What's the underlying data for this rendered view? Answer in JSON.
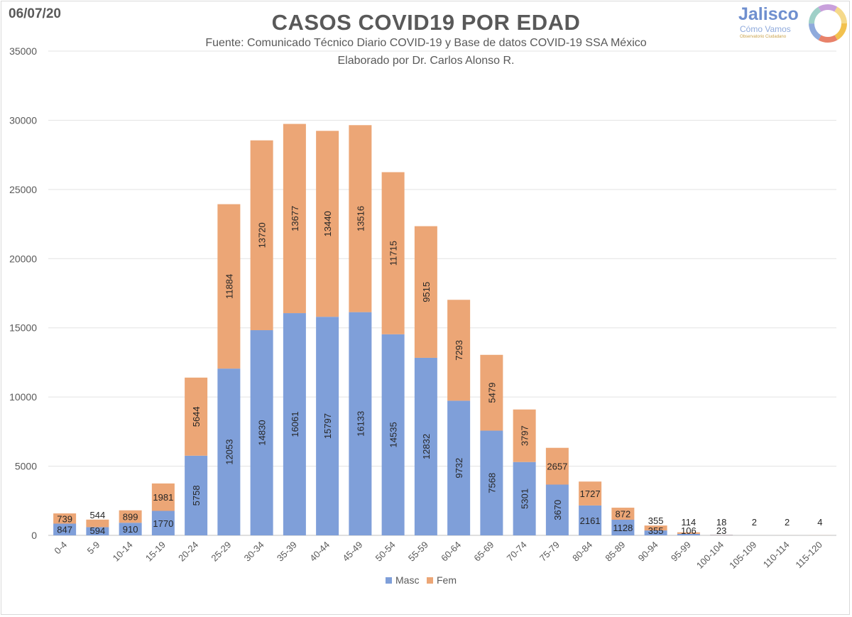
{
  "header": {
    "date": "06/07/20",
    "title": "CASOS COVID19 POR EDAD",
    "subtitle_line1": "Fuente: Comunicado Técnico Diario COVID-19 y Base de datos COVID-19 SSA México",
    "subtitle_line2": "Elaborado por Dr. Carlos Alonso R."
  },
  "logo": {
    "name": "Jalisco",
    "tagline": "Cómo Vamos",
    "small": "Observatorio Ciudadano"
  },
  "chart_data": {
    "type": "bar",
    "stacked": true,
    "title": "CASOS COVID19 POR EDAD",
    "xlabel": "",
    "ylabel": "",
    "ylim": [
      0,
      35000
    ],
    "yticks": [
      0,
      5000,
      10000,
      15000,
      20000,
      25000,
      30000,
      35000
    ],
    "grid": true,
    "legend_position": "bottom",
    "categories": [
      "0-4",
      "5-9",
      "10-14",
      "15-19",
      "20-24",
      "25-29",
      "30-34",
      "35-39",
      "40-44",
      "45-49",
      "50-54",
      "55-59",
      "60-64",
      "65-69",
      "70-74",
      "75-79",
      "80-84",
      "85-89",
      "90-94",
      "95-99",
      "100-104",
      "105-109",
      "110-114",
      "115-120"
    ],
    "series": [
      {
        "name": "Masc",
        "color": "#7f9fd9",
        "values": [
          847,
          594,
          910,
          1770,
          5758,
          12053,
          14830,
          16061,
          15797,
          16133,
          14535,
          12832,
          9732,
          7568,
          5301,
          3670,
          2161,
          1128,
          355,
          106,
          23,
          0,
          0,
          0
        ]
      },
      {
        "name": "Fem",
        "color": "#eca676",
        "values": [
          739,
          544,
          899,
          1981,
          5644,
          11884,
          13720,
          13677,
          13440,
          13516,
          11715,
          9515,
          7293,
          5479,
          3797,
          2657,
          1727,
          872,
          355,
          114,
          18,
          2,
          2,
          4
        ]
      }
    ],
    "data_labels": {
      "masc": [
        "847",
        "594",
        "910",
        "1770",
        "5758",
        "12053",
        "14830",
        "16061",
        "15797",
        "16133",
        "14535",
        "12832",
        "9732",
        "7568",
        "5301",
        "3670",
        "2161",
        "1128",
        "355",
        "106",
        "23",
        "",
        "",
        ""
      ],
      "fem": [
        "739",
        "544",
        "899",
        "1981",
        "5644",
        "11884",
        "13720",
        "13677",
        "13440",
        "13516",
        "11715",
        "9515",
        "7293",
        "5479",
        "3797",
        "2657",
        "1727",
        "872",
        "355",
        "114",
        "18",
        "2",
        "2",
        "4"
      ]
    }
  }
}
